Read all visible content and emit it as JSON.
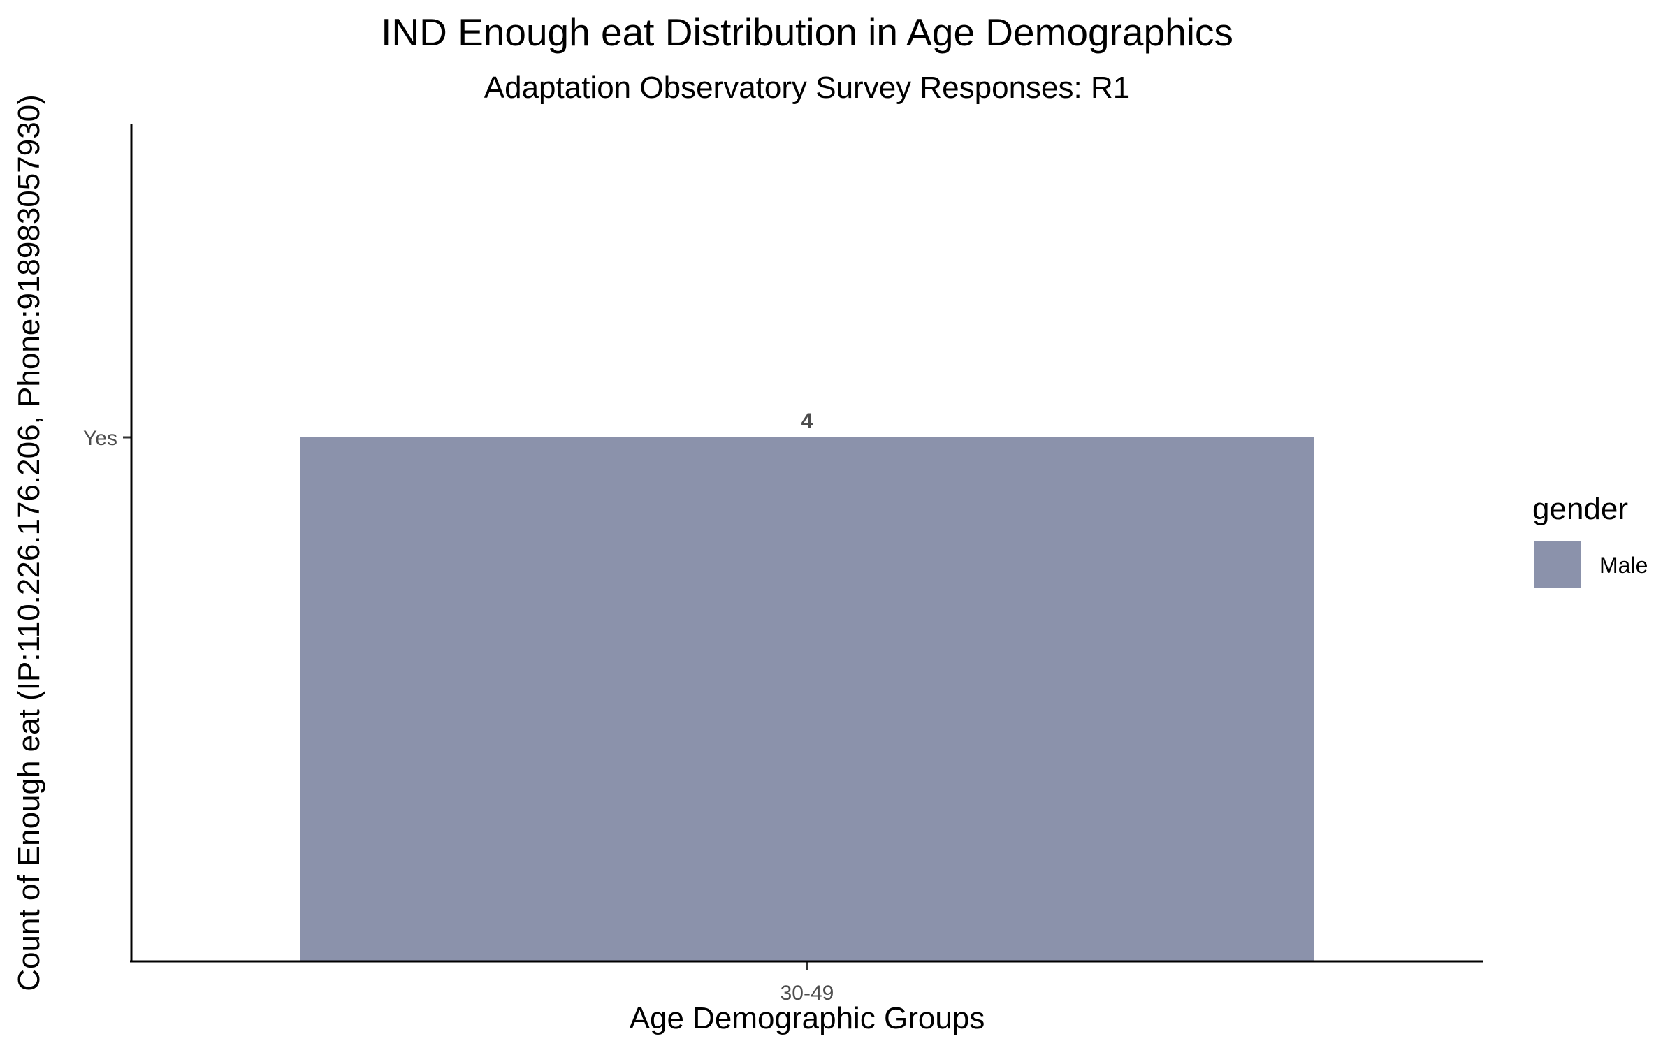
{
  "chart_data": {
    "type": "bar",
    "title": "IND Enough eat Distribution in Age Demographics",
    "subtitle": "Adaptation Observatory Survey Responses: R1",
    "xlabel": "Age Demographic Groups",
    "ylabel": "Count of Enough eat (IP:110.226.176.206, Phone:918983057930)",
    "categories": [
      "30-49"
    ],
    "series": [
      {
        "name": "Male",
        "values": [
          4
        ],
        "labels": [
          "Yes"
        ],
        "color": "#8b92ab"
      }
    ],
    "data_labels": [
      "4"
    ],
    "y_ticks": [
      "Yes"
    ],
    "legend": {
      "title": "gender",
      "position": "right",
      "entries": [
        {
          "label": "Male",
          "color": "#8b92ab"
        }
      ]
    },
    "grid": false
  }
}
